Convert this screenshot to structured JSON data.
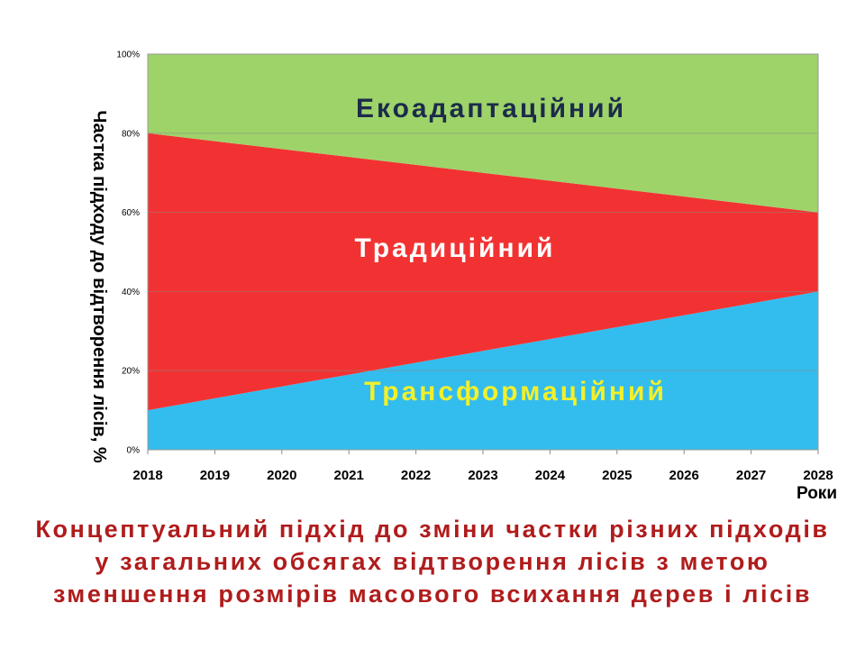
{
  "chart_data": {
    "type": "area",
    "stacked": true,
    "normalized_percent": true,
    "x": [
      2018,
      2019,
      2020,
      2021,
      2022,
      2023,
      2024,
      2025,
      2026,
      2027,
      2028
    ],
    "series": [
      {
        "name": "Трансформаційний",
        "color": "#33bdee",
        "label_color": "#f2f02a",
        "values": [
          10,
          13,
          16,
          19,
          22,
          25,
          28,
          31,
          34,
          37,
          40
        ]
      },
      {
        "name": "Традиційний",
        "color": "#f23232",
        "label_color": "#ffffff",
        "values": [
          70,
          65,
          60,
          55,
          50,
          45,
          40,
          35,
          30,
          25,
          20
        ]
      },
      {
        "name": "Екоадаптаційний",
        "color": "#9ed36a",
        "label_color": "#1c2b4a",
        "values": [
          20,
          22,
          24,
          26,
          28,
          30,
          32,
          34,
          36,
          38,
          40
        ]
      }
    ],
    "ylim": [
      0,
      100
    ],
    "yticks": [
      "0%",
      "20%",
      "40%",
      "60%",
      "80%",
      "100%"
    ],
    "ylabel": "Частка підходу до відтворення лісів, %",
    "xlabel": "Роки",
    "grid": true
  },
  "caption": {
    "line1": "Концептуальний підхід до зміни частки різних підходів",
    "line2": "у загальних обсягах відтворення лісів з метою",
    "line3": "зменшення розмірів масового всихання дерев і лісів"
  }
}
